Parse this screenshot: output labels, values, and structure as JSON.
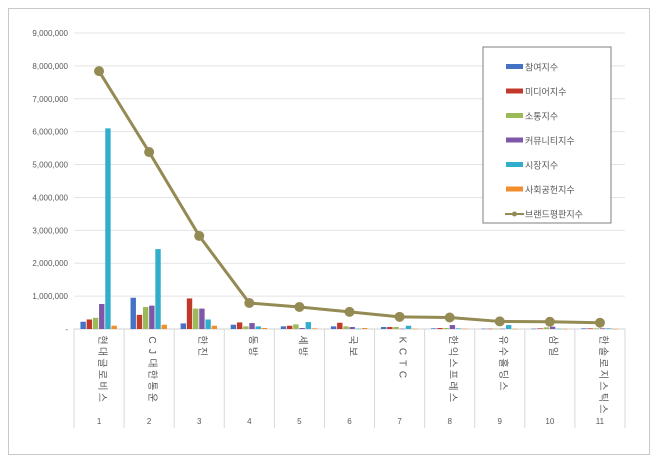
{
  "chart_data": {
    "type": "bar+line",
    "title": "",
    "xlabel": "",
    "ylabel": "",
    "ylim": [
      0,
      9000000
    ],
    "y_ticks": [
      "-",
      "1,000,000",
      "2,000,000",
      "3,000,000",
      "4,000,000",
      "5,000,000",
      "6,000,000",
      "7,000,000",
      "8,000,000",
      "9,000,000"
    ],
    "grid": true,
    "legend_position": "top-right",
    "categories": [
      "현대글로비스",
      "CJ대한통운",
      "한진",
      "동방",
      "세방",
      "국보",
      "KCTC",
      "한익스프레스",
      "유수홀딩스",
      "삼일",
      "한솔로지스틱스"
    ],
    "ranks": [
      "1",
      "2",
      "3",
      "4",
      "5",
      "6",
      "7",
      "8",
      "9",
      "10",
      "11"
    ],
    "series": [
      {
        "name": "참여지수",
        "kind": "bar",
        "color": "#4472c4",
        "values": [
          220000,
          950000,
          170000,
          130000,
          80000,
          80000,
          60000,
          20000,
          10000,
          10000,
          20000
        ]
      },
      {
        "name": "미디어지수",
        "kind": "bar",
        "color": "#c0392b",
        "values": [
          290000,
          430000,
          930000,
          200000,
          100000,
          190000,
          60000,
          30000,
          10000,
          20000,
          20000
        ]
      },
      {
        "name": "소통지수",
        "kind": "bar",
        "color": "#9bbb59",
        "values": [
          340000,
          670000,
          620000,
          80000,
          140000,
          80000,
          60000,
          30000,
          10000,
          50000,
          20000
        ]
      },
      {
        "name": "커뮤니티지수",
        "kind": "bar",
        "color": "#7e57a8",
        "values": [
          760000,
          710000,
          620000,
          180000,
          30000,
          60000,
          10000,
          120000,
          10000,
          70000,
          20000
        ]
      },
      {
        "name": "시장지수",
        "kind": "bar",
        "color": "#31aecb",
        "values": [
          6100000,
          2430000,
          290000,
          80000,
          210000,
          10000,
          100000,
          20000,
          120000,
          10000,
          20000
        ]
      },
      {
        "name": "사회공헌지수",
        "kind": "bar",
        "color": "#f28e2b",
        "values": [
          100000,
          130000,
          100000,
          30000,
          20000,
          30000,
          10000,
          10000,
          5000,
          5000,
          5000
        ]
      },
      {
        "name": "브랜드평판지수",
        "kind": "line",
        "color": "#948a54",
        "values": [
          7840000,
          5380000,
          2830000,
          790000,
          670000,
          520000,
          370000,
          350000,
          230000,
          220000,
          190000
        ]
      }
    ]
  }
}
